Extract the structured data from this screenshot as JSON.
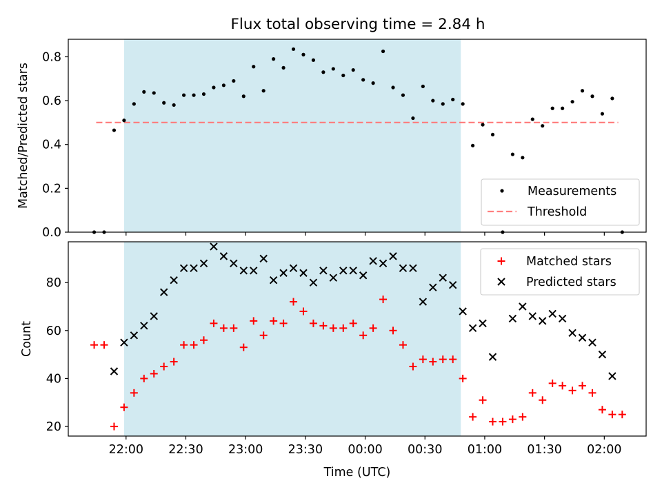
{
  "title": "Flux total observing time = 2.84 h",
  "colors": {
    "shade": "#add8e6",
    "measurement": "#000000",
    "threshold": "#ff7f7f",
    "matched": "#ff0000",
    "predicted": "#000000"
  },
  "chart_data": [
    {
      "type": "scatter",
      "ylabel": "Matched/Predicted stars",
      "ylim": [
        0.0,
        0.88
      ],
      "yticks": [
        0.0,
        0.2,
        0.4,
        0.6,
        0.8
      ],
      "ytick_labels": [
        "0.0",
        "0.2",
        "0.4",
        "0.6",
        "0.8"
      ],
      "x_axis_type": "time",
      "xlim": [
        "21:31",
        "02:21"
      ],
      "xticks": [
        "22:00",
        "22:30",
        "23:00",
        "23:30",
        "00:00",
        "00:30",
        "01:00",
        "01:30",
        "02:00"
      ],
      "shaded_interval": [
        "21:59",
        "00:48"
      ],
      "legend_position": "lower right",
      "threshold": {
        "name": "Threshold",
        "value": 0.5,
        "x": [
          "21:45",
          "02:07"
        ]
      },
      "series": [
        {
          "name": "Measurements",
          "x": [
            "21:44",
            "21:49",
            "21:54",
            "21:59",
            "22:04",
            "22:09",
            "22:14",
            "22:19",
            "22:24",
            "22:29",
            "22:34",
            "22:39",
            "22:44",
            "22:49",
            "22:54",
            "22:59",
            "23:04",
            "23:09",
            "23:14",
            "23:19",
            "23:24",
            "23:29",
            "23:34",
            "23:39",
            "23:44",
            "23:49",
            "23:54",
            "23:59",
            "00:04",
            "00:09",
            "00:14",
            "00:19",
            "00:24",
            "00:29",
            "00:34",
            "00:39",
            "00:44",
            "00:49",
            "00:54",
            "00:59",
            "01:04",
            "01:09",
            "01:14",
            "01:19",
            "01:24",
            "01:29",
            "01:34",
            "01:39",
            "01:44",
            "01:49",
            "01:54",
            "01:59",
            "02:04",
            "02:09"
          ],
          "y": [
            0.0,
            0.0,
            0.465,
            0.51,
            0.585,
            0.64,
            0.635,
            0.59,
            0.58,
            0.625,
            0.625,
            0.63,
            0.66,
            0.67,
            0.69,
            0.62,
            0.755,
            0.645,
            0.79,
            0.75,
            0.835,
            0.81,
            0.785,
            0.73,
            0.745,
            0.715,
            0.74,
            0.695,
            0.68,
            0.825,
            0.66,
            0.625,
            0.52,
            0.665,
            0.6,
            0.585,
            0.605,
            0.585,
            0.395,
            0.49,
            0.445,
            0.0,
            0.355,
            0.34,
            0.515,
            0.485,
            0.565,
            0.565,
            0.595,
            0.645,
            0.62,
            0.54,
            0.61,
            0.0
          ]
        }
      ]
    },
    {
      "type": "scatter",
      "xlabel": "Time (UTC)",
      "ylabel": "Count",
      "ylim": [
        16,
        97
      ],
      "yticks": [
        20,
        40,
        60,
        80
      ],
      "ytick_labels": [
        "20",
        "40",
        "60",
        "80"
      ],
      "x_axis_type": "time",
      "xlim": [
        "21:31",
        "02:21"
      ],
      "xticks": [
        "22:00",
        "22:30",
        "23:00",
        "23:30",
        "00:00",
        "00:30",
        "01:00",
        "01:30",
        "02:00"
      ],
      "xtick_labels": [
        "22:00",
        "22:30",
        "23:00",
        "23:30",
        "00:00",
        "00:30",
        "01:00",
        "01:30",
        "02:00"
      ],
      "shaded_interval": [
        "21:59",
        "00:48"
      ],
      "legend_position": "upper right",
      "series": [
        {
          "name": "Matched stars",
          "marker": "+",
          "x": [
            "21:44",
            "21:49",
            "21:54",
            "21:59",
            "22:04",
            "22:09",
            "22:14",
            "22:19",
            "22:24",
            "22:29",
            "22:34",
            "22:39",
            "22:44",
            "22:49",
            "22:54",
            "22:59",
            "23:04",
            "23:09",
            "23:14",
            "23:19",
            "23:24",
            "23:29",
            "23:34",
            "23:39",
            "23:44",
            "23:49",
            "23:54",
            "23:59",
            "00:04",
            "00:09",
            "00:14",
            "00:19",
            "00:24",
            "00:29",
            "00:34",
            "00:39",
            "00:44",
            "00:49",
            "00:54",
            "00:59",
            "01:04",
            "01:09",
            "01:14",
            "01:19",
            "01:24",
            "01:29",
            "01:34",
            "01:39",
            "01:44",
            "01:49",
            "01:54",
            "01:59",
            "02:04",
            "02:09"
          ],
          "y": [
            54,
            54,
            20,
            28,
            34,
            40,
            42,
            45,
            47,
            54,
            54,
            56,
            63,
            61,
            61,
            53,
            64,
            58,
            64,
            63,
            72,
            68,
            63,
            62,
            61,
            61,
            63,
            58,
            61,
            73,
            60,
            54,
            45,
            48,
            47,
            48,
            48,
            40,
            24,
            31,
            22,
            22,
            23,
            24,
            34,
            31,
            38,
            37,
            35,
            37,
            34,
            27,
            25,
            25
          ]
        },
        {
          "name": "Predicted stars",
          "marker": "x",
          "x": [
            "21:54",
            "21:59",
            "22:04",
            "22:09",
            "22:14",
            "22:19",
            "22:24",
            "22:29",
            "22:34",
            "22:39",
            "22:44",
            "22:49",
            "22:54",
            "22:59",
            "23:04",
            "23:09",
            "23:14",
            "23:19",
            "23:24",
            "23:29",
            "23:34",
            "23:39",
            "23:44",
            "23:49",
            "23:54",
            "23:59",
            "00:04",
            "00:09",
            "00:14",
            "00:19",
            "00:24",
            "00:29",
            "00:34",
            "00:39",
            "00:44",
            "00:49",
            "00:54",
            "00:59",
            "01:04",
            "01:14",
            "01:19",
            "01:24",
            "01:29",
            "01:34",
            "01:39",
            "01:44",
            "01:49",
            "01:54",
            "01:59",
            "02:04"
          ],
          "y": [
            43,
            55,
            58,
            62,
            66,
            76,
            81,
            86,
            86,
            88,
            95,
            91,
            88,
            85,
            85,
            90,
            81,
            84,
            86,
            84,
            80,
            85,
            82,
            85,
            85,
            83,
            89,
            88,
            91,
            86,
            86,
            72,
            78,
            82,
            79,
            68,
            61,
            63,
            49,
            65,
            70,
            66,
            64,
            67,
            65,
            59,
            57,
            55,
            50,
            41
          ]
        }
      ]
    }
  ]
}
